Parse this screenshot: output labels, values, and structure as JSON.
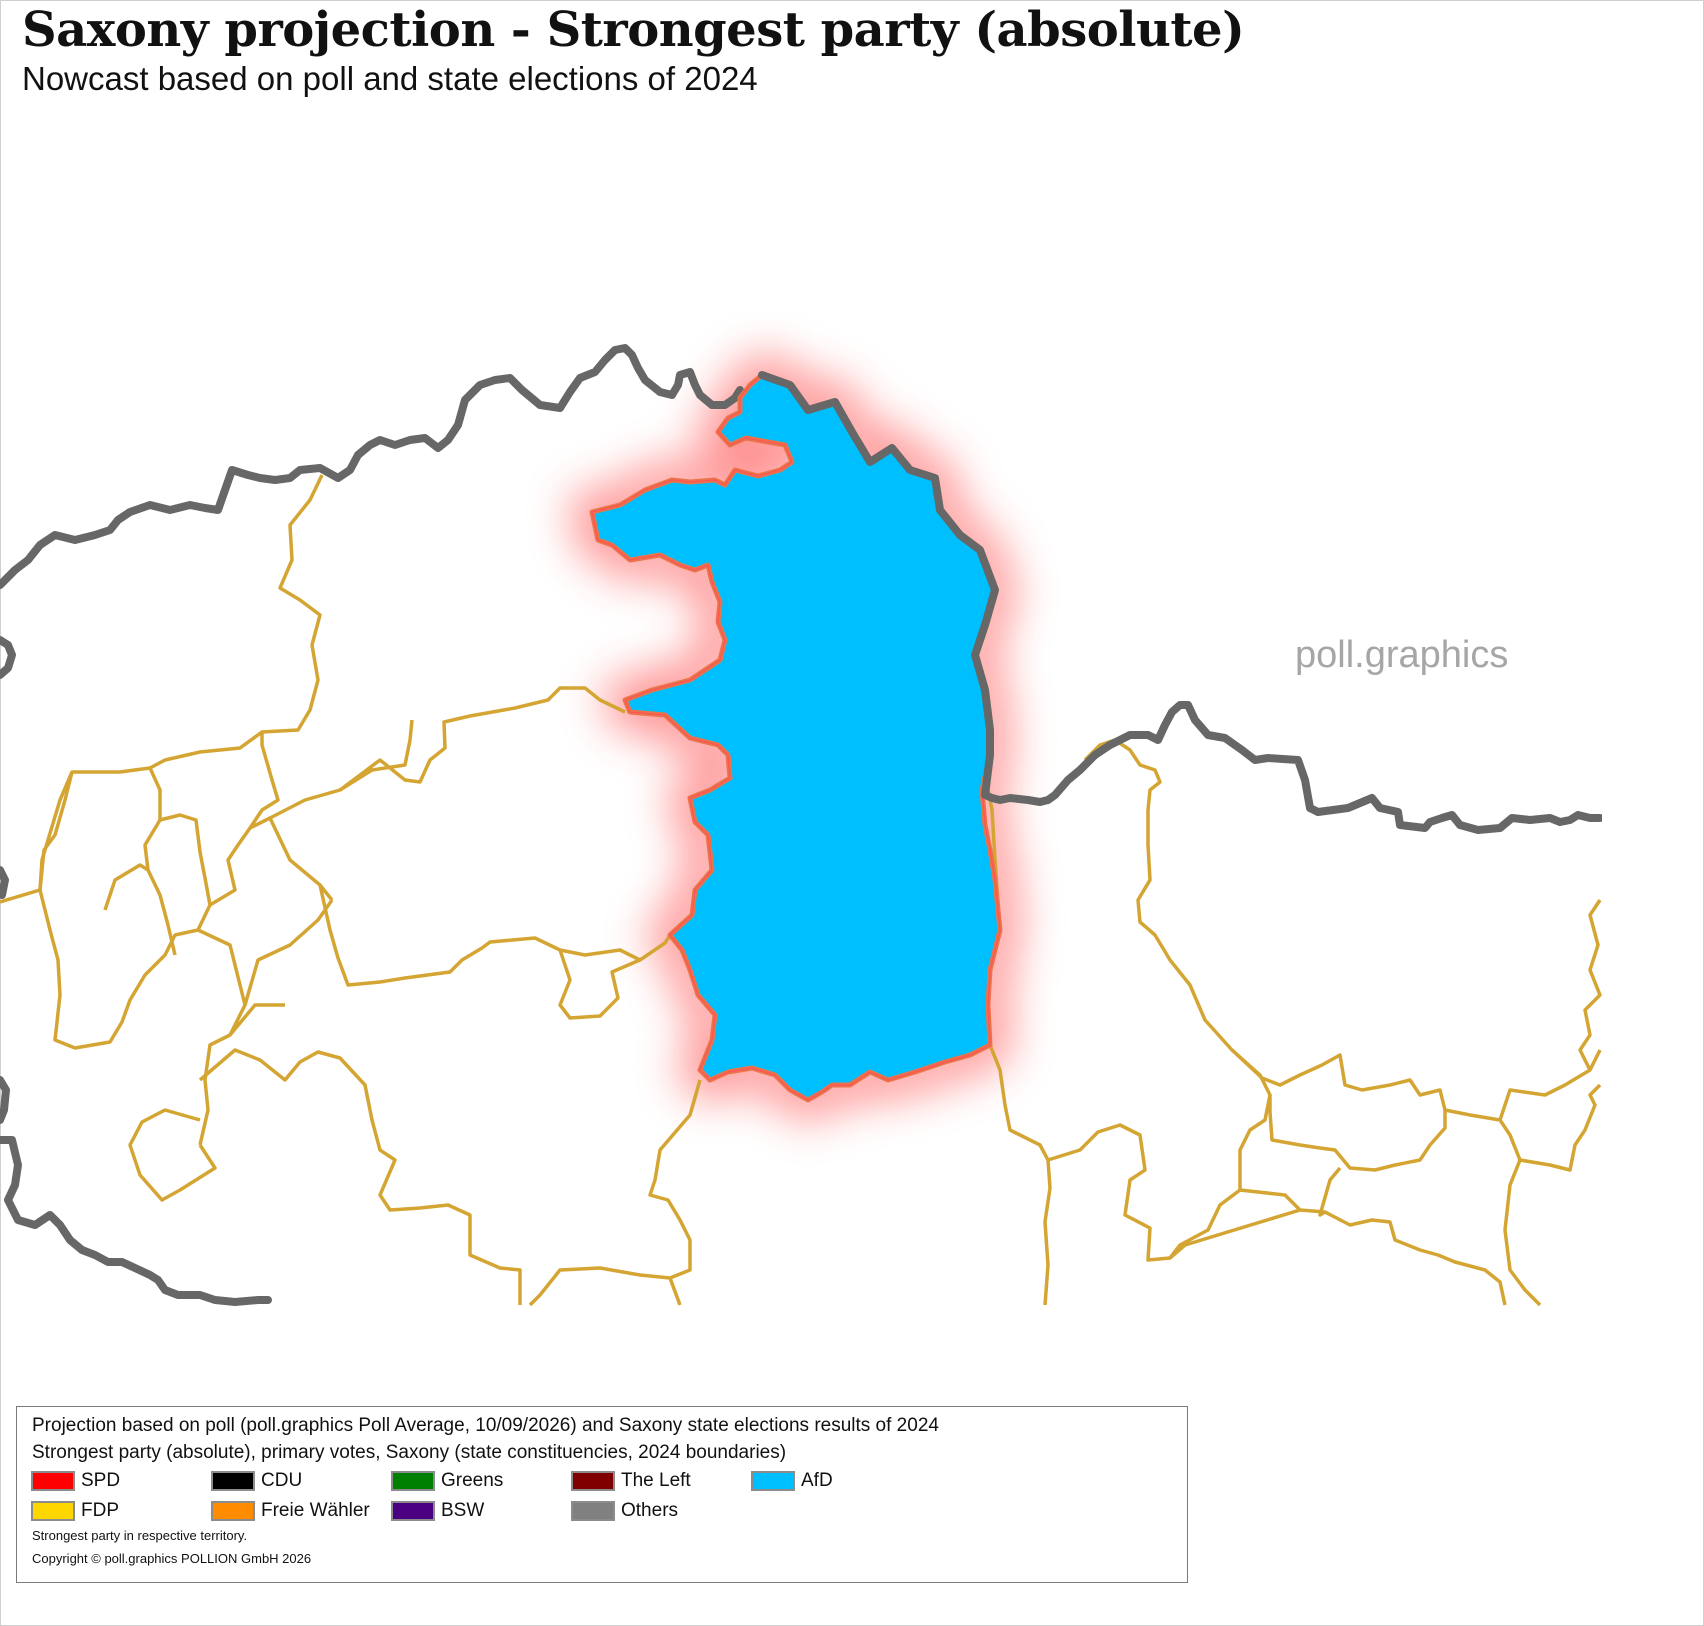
{
  "header": {
    "title": "Saxony projection - Strongest party (absolute)",
    "subtitle": "Nowcast based on poll and state elections of 2024"
  },
  "watermark": "poll.graphics",
  "map": {
    "highlighted_region_party": "AfD",
    "highlighted_region_color": "#00bfff",
    "highlight_outline_color": "#e8764a",
    "highlight_glow_color": "#ff4444",
    "state_border_color": "#666666",
    "constituency_border_color": "#d4a532"
  },
  "legend": {
    "line1": "Projection based on poll (poll.graphics Poll Average, 10/09/2026) and Saxony state elections results of 2024",
    "line2": "Strongest party (absolute), primary votes, Saxony (state constituencies, 2024 boundaries)",
    "parties": [
      {
        "name": "SPD",
        "color": "#ff0000"
      },
      {
        "name": "CDU",
        "color": "#000000"
      },
      {
        "name": "Greens",
        "color": "#008000"
      },
      {
        "name": "The Left",
        "color": "#800000"
      },
      {
        "name": "AfD",
        "color": "#00bfff"
      },
      {
        "name": "FDP",
        "color": "#ffd700"
      },
      {
        "name": "Freie Wähler",
        "color": "#ff8c00"
      },
      {
        "name": "BSW",
        "color": "#4b0082"
      },
      {
        "name": "Others",
        "color": "#808080"
      }
    ],
    "note": "Strongest party in respective territory.",
    "copyright": "Copyright © poll.graphics POLLION GmbH 2026"
  }
}
